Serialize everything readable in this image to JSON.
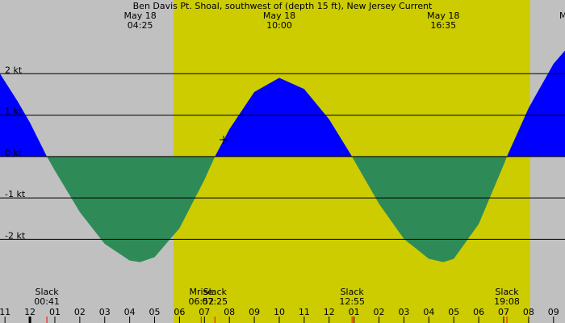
{
  "chart_data": {
    "type": "area",
    "title": "Ben Davis Pt. Shoal, southwest of (depth 15 ft), New Jersey Current",
    "xlim": [
      -1.2,
      21.46
    ],
    "ylim": [
      -4.02,
      3.78
    ],
    "yticks": [
      {
        "value": 2,
        "label": "2 kt"
      },
      {
        "value": 1,
        "label": "1 kt"
      },
      {
        "value": 0,
        "label": "0 kt"
      },
      {
        "value": -1,
        "label": "-1 kt"
      },
      {
        "value": -2,
        "label": "-2 kt"
      }
    ],
    "xticks": [
      {
        "value": -1,
        "label": "11"
      },
      {
        "value": 0,
        "label": "12"
      },
      {
        "value": 1,
        "label": "01"
      },
      {
        "value": 2,
        "label": "02"
      },
      {
        "value": 3,
        "label": "03"
      },
      {
        "value": 4,
        "label": "04"
      },
      {
        "value": 5,
        "label": "05"
      },
      {
        "value": 6,
        "label": "06"
      },
      {
        "value": 7,
        "label": "07"
      },
      {
        "value": 8,
        "label": "08"
      },
      {
        "value": 9,
        "label": "09"
      },
      {
        "value": 10,
        "label": "10"
      },
      {
        "value": 11,
        "label": "11"
      },
      {
        "value": 12,
        "label": "12"
      },
      {
        "value": 13,
        "label": "01"
      },
      {
        "value": 14,
        "label": "02"
      },
      {
        "value": 15,
        "label": "03"
      },
      {
        "value": 16,
        "label": "04"
      },
      {
        "value": 17,
        "label": "05"
      },
      {
        "value": 18,
        "label": "06"
      },
      {
        "value": 19,
        "label": "07"
      },
      {
        "value": 20,
        "label": "08"
      },
      {
        "value": 21,
        "label": "09"
      }
    ],
    "daylight": [
      5.76,
      20.06
    ],
    "colors": {
      "night": "#c0c0c0",
      "day": "#cccc00",
      "flood": "#0000ff",
      "ebb": "#2e8b57",
      "event_tick": "#ff0000"
    },
    "x": [
      -1.2,
      -0.5,
      0,
      0.68,
      1,
      2,
      3,
      4,
      4.42,
      5,
      6,
      7,
      7.42,
      8,
      9,
      10,
      11,
      12,
      12.92,
      13,
      14,
      15,
      16,
      16.58,
      17,
      18,
      19,
      19.13,
      20,
      21,
      21.46
    ],
    "values": [
      2.0,
      1.34,
      0.82,
      0,
      -0.34,
      -1.34,
      -2.11,
      -2.51,
      -2.55,
      -2.43,
      -1.73,
      -0.56,
      0,
      0.66,
      1.56,
      1.9,
      1.63,
      0.9,
      0,
      -0.09,
      -1.14,
      -1.99,
      -2.47,
      -2.55,
      -2.47,
      -1.63,
      -0.2,
      0,
      1.17,
      2.24,
      2.56
    ],
    "top_events": [
      {
        "date": "May 18",
        "time": "04:25",
        "hour": 4.42
      },
      {
        "date": "May 18",
        "time": "10:00",
        "hour": 10
      },
      {
        "date": "May 18",
        "time": "16:35",
        "hour": 16.58
      }
    ],
    "top_partial": "M",
    "bottom_events": [
      {
        "label": "Slack",
        "time": "00:41",
        "hour": 0.68
      },
      {
        "label": "Mrise",
        "time": "06:52",
        "hour": 6.87
      },
      {
        "label": "Slack",
        "time": "07:25",
        "hour": 7.42
      },
      {
        "label": "Slack",
        "time": "12:55",
        "hour": 12.92
      },
      {
        "label": "Slack",
        "time": "19:08",
        "hour": 19.13
      }
    ]
  }
}
